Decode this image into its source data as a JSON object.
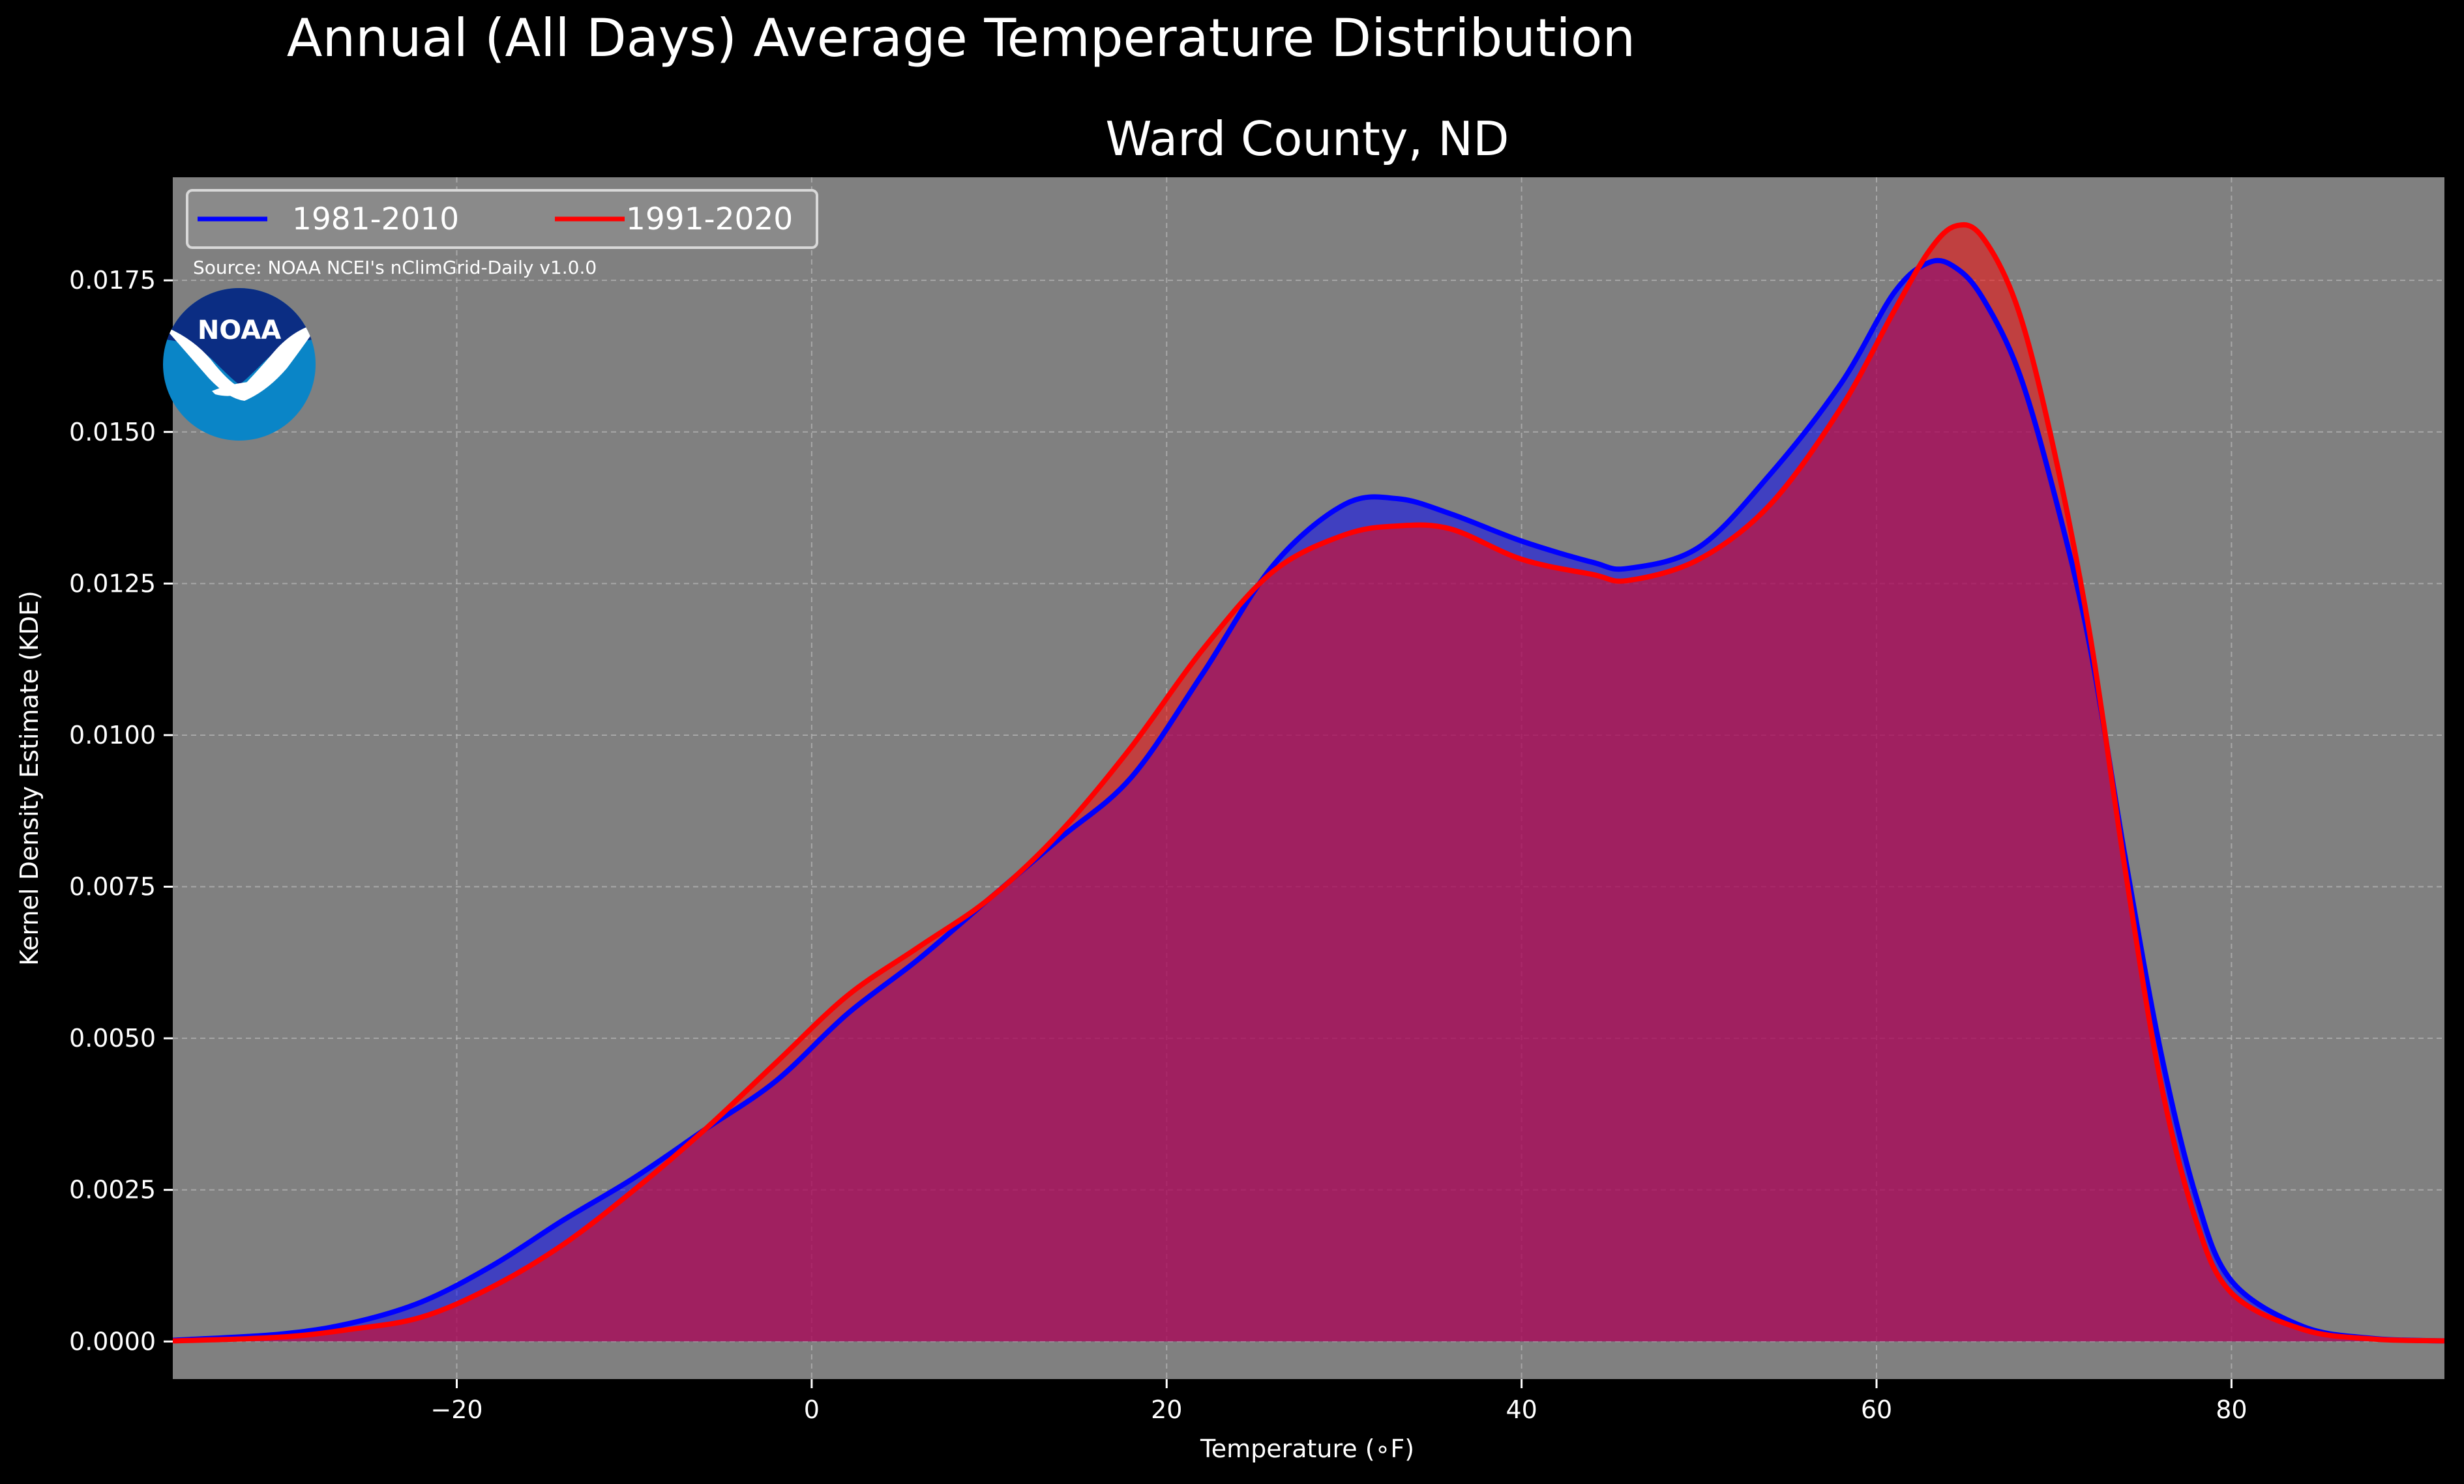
{
  "colors": {
    "background": "#000000",
    "plot_background": "#808080",
    "grid": "#b8b8b8",
    "series_1981": "#0000ff",
    "series_1991": "#ff0000",
    "noaa_blue": "#0a85c7",
    "noaa_navy": "#0b2d83"
  },
  "logo": {
    "text": "NOAA",
    "icon": "noaa-seagull-logo"
  },
  "chart_data": {
    "type": "area",
    "title": "Annual (All Days) Average Temperature Distribution",
    "subtitle": "Ward County, ND",
    "xlabel": "Temperature (∘F)",
    "ylabel": "Kernel Density Estimate (KDE)",
    "xlim": [
      -36,
      92
    ],
    "ylim": [
      -0.00062,
      0.0192
    ],
    "xticks": [
      -20,
      0,
      20,
      40,
      60,
      80
    ],
    "xtick_labels": [
      "−20",
      "0",
      "20",
      "40",
      "60",
      "80"
    ],
    "yticks": [
      0,
      0.0025,
      0.005,
      0.0075,
      0.01,
      0.0125,
      0.015,
      0.0175
    ],
    "ytick_labels": [
      "0.0000",
      "0.0025",
      "0.0050",
      "0.0075",
      "0.0100",
      "0.0125",
      "0.0150",
      "0.0175"
    ],
    "grid": true,
    "legend": {
      "placement": "top-left",
      "columns": 2
    },
    "source_note": "Source: NOAA NCEI's nClimGrid-Daily v1.0.0",
    "x": [
      -36,
      -30,
      -26,
      -22,
      -18,
      -14,
      -10,
      -6,
      -2,
      2,
      6,
      10,
      14,
      18,
      22,
      26,
      30,
      33,
      36,
      40,
      44,
      46,
      50,
      54,
      58,
      61,
      63,
      64.5,
      66,
      68,
      70,
      72,
      74,
      76,
      78,
      80,
      84,
      88,
      92
    ],
    "series": [
      {
        "name": "1981-2010",
        "values": [
          2e-05,
          0.00012,
          0.0003,
          0.00065,
          0.00125,
          0.002,
          0.0027,
          0.0035,
          0.0043,
          0.0054,
          0.0063,
          0.0073,
          0.0083,
          0.0093,
          0.011,
          0.0128,
          0.0138,
          0.0139,
          0.01365,
          0.0132,
          0.01285,
          0.01275,
          0.0131,
          0.0143,
          0.0158,
          0.0173,
          0.0178,
          0.0177,
          0.0172,
          0.016,
          0.014,
          0.0115,
          0.008,
          0.0048,
          0.0024,
          0.001,
          0.00025,
          5e-05,
          1e-05
        ]
      },
      {
        "name": "1991-2020",
        "values": [
          1e-05,
          7e-05,
          0.0002,
          0.0004,
          0.0009,
          0.0016,
          0.0025,
          0.0035,
          0.0046,
          0.0057,
          0.0065,
          0.0073,
          0.0084,
          0.0098,
          0.0114,
          0.0127,
          0.0133,
          0.01345,
          0.0134,
          0.0129,
          0.01265,
          0.01255,
          0.0129,
          0.0138,
          0.0154,
          0.017,
          0.018,
          0.0184,
          0.0182,
          0.017,
          0.0147,
          0.0117,
          0.0078,
          0.0043,
          0.002,
          0.0008,
          0.0002,
          4e-05,
          1e-05
        ]
      }
    ]
  }
}
